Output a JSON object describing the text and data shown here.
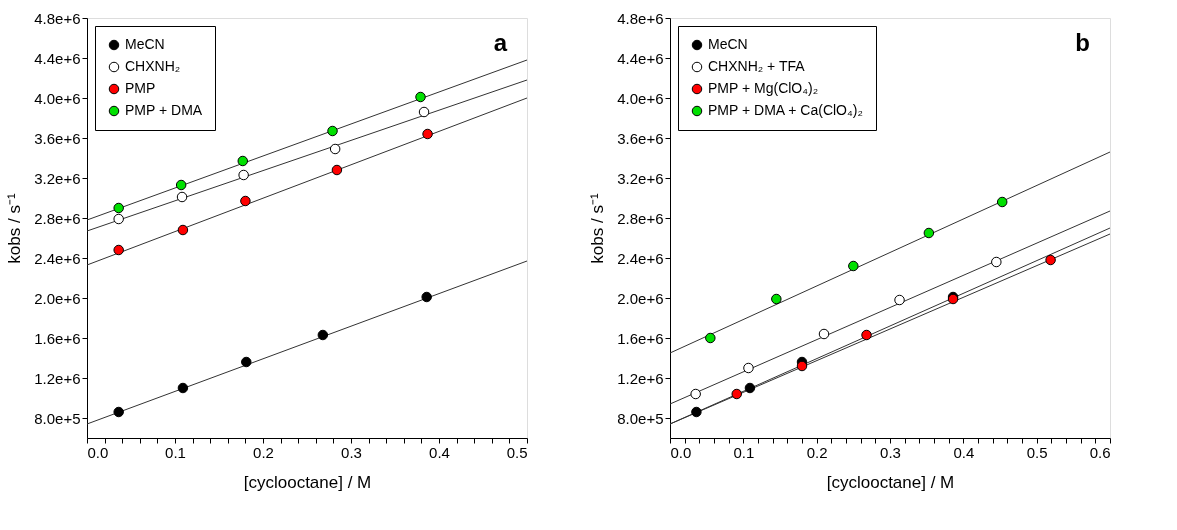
{
  "chart_data": [
    {
      "type": "scatter",
      "xlabel": "[cyclooctane] / M",
      "ylabel": "kobs / s⁻¹",
      "annotations": [
        "a"
      ],
      "legend": "top left",
      "grid": false,
      "marker": "circle",
      "xlim": [
        0,
        0.5
      ],
      "xticks": [
        {
          "value": 0,
          "label": "0.0"
        },
        {
          "value": 0.02,
          "label": null
        },
        {
          "value": 0.04,
          "label": null
        },
        {
          "value": 0.06,
          "label": null
        },
        {
          "value": 0.08,
          "label": null
        },
        {
          "value": 0.1,
          "label": "0.1"
        },
        {
          "value": 0.12,
          "label": null
        },
        {
          "value": 0.14,
          "label": null
        },
        {
          "value": 0.16,
          "label": null
        },
        {
          "value": 0.18,
          "label": null
        },
        {
          "value": 0.2,
          "label": "0.2"
        },
        {
          "value": 0.22,
          "label": null
        },
        {
          "value": 0.24,
          "label": null
        },
        {
          "value": 0.26,
          "label": null
        },
        {
          "value": 0.28,
          "label": null
        },
        {
          "value": 0.3,
          "label": "0.3"
        },
        {
          "value": 0.32,
          "label": null
        },
        {
          "value": 0.34,
          "label": null
        },
        {
          "value": 0.36,
          "label": null
        },
        {
          "value": 0.38,
          "label": null
        },
        {
          "value": 0.4,
          "label": "0.4"
        },
        {
          "value": 0.42,
          "label": null
        },
        {
          "value": 0.44,
          "label": null
        },
        {
          "value": 0.46,
          "label": null
        },
        {
          "value": 0.48,
          "label": null
        },
        {
          "value": 0.5,
          "label": "0.5"
        }
      ],
      "ylim": [
        600000,
        4800000
      ],
      "yticks": [
        {
          "value": 800000,
          "label": "8.0e+5"
        },
        {
          "value": 1200000,
          "label": "1.2e+6"
        },
        {
          "value": 1600000,
          "label": "1.6e+6"
        },
        {
          "value": 2000000,
          "label": "2.0e+6"
        },
        {
          "value": 2400000,
          "label": "2.4e+6"
        },
        {
          "value": 2800000,
          "label": "2.8e+6"
        },
        {
          "value": 3200000,
          "label": "3.2e+6"
        },
        {
          "value": 3600000,
          "label": "3.6e+6"
        },
        {
          "value": 4000000,
          "label": "4.0e+6"
        },
        {
          "value": 4400000,
          "label": "4.4e+6"
        },
        {
          "value": 4800000,
          "label": "4.8e+6"
        }
      ],
      "series": [
        {
          "type": "line",
          "marker": "none",
          "color": "#333333",
          "x": [
            0,
            0.5
          ],
          "values": [
            740000,
            2370000
          ]
        },
        {
          "type": "line",
          "marker": "none",
          "color": "#333333",
          "x": [
            0,
            0.5
          ],
          "values": [
            2670000,
            4180000
          ]
        },
        {
          "type": "line",
          "marker": "none",
          "color": "#333333",
          "x": [
            0,
            0.5
          ],
          "values": [
            2330000,
            4000000
          ]
        },
        {
          "type": "line",
          "marker": "none",
          "color": "#333333",
          "x": [
            0,
            0.5
          ],
          "values": [
            2780000,
            4380000
          ]
        },
        {
          "name": "MeCN",
          "color": "#000000",
          "x": [
            0.036,
            0.109,
            0.181,
            0.268,
            0.386
          ],
          "values": [
            860000,
            1100000,
            1360000,
            1630000,
            2010000
          ]
        },
        {
          "name": "CHXNH₂",
          "color": "#ffffff",
          "x": [
            0.036,
            0.108,
            0.178,
            0.282,
            0.383
          ],
          "values": [
            2790000,
            3010000,
            3230000,
            3490000,
            3860000
          ]
        },
        {
          "name": "PMP",
          "color": "#ff0000",
          "x": [
            0.036,
            0.109,
            0.18,
            0.284,
            0.387
          ],
          "values": [
            2480000,
            2680000,
            2970000,
            3280000,
            3640000
          ]
        },
        {
          "name": "PMP + DMA",
          "color": "#00e000",
          "x": [
            0.036,
            0.107,
            0.177,
            0.279,
            0.379
          ],
          "values": [
            2900000,
            3130000,
            3370000,
            3670000,
            4010000
          ]
        }
      ]
    },
    {
      "type": "scatter",
      "xlabel": "[cyclooctane] / M",
      "ylabel": "kobs / s⁻¹",
      "annotations": [
        "b"
      ],
      "legend": "top left",
      "grid": false,
      "marker": "circle",
      "xlim": [
        0,
        0.6
      ],
      "xticks": [
        {
          "value": 0,
          "label": "0.0"
        },
        {
          "value": 0.02,
          "label": null
        },
        {
          "value": 0.04,
          "label": null
        },
        {
          "value": 0.06,
          "label": null
        },
        {
          "value": 0.08,
          "label": null
        },
        {
          "value": 0.1,
          "label": "0.1"
        },
        {
          "value": 0.12,
          "label": null
        },
        {
          "value": 0.14,
          "label": null
        },
        {
          "value": 0.16,
          "label": null
        },
        {
          "value": 0.18,
          "label": null
        },
        {
          "value": 0.2,
          "label": "0.2"
        },
        {
          "value": 0.22,
          "label": null
        },
        {
          "value": 0.24,
          "label": null
        },
        {
          "value": 0.26,
          "label": null
        },
        {
          "value": 0.28,
          "label": null
        },
        {
          "value": 0.3,
          "label": "0.3"
        },
        {
          "value": 0.32,
          "label": null
        },
        {
          "value": 0.34,
          "label": null
        },
        {
          "value": 0.36,
          "label": null
        },
        {
          "value": 0.38,
          "label": null
        },
        {
          "value": 0.4,
          "label": "0.4"
        },
        {
          "value": 0.42,
          "label": null
        },
        {
          "value": 0.44,
          "label": null
        },
        {
          "value": 0.46,
          "label": null
        },
        {
          "value": 0.48,
          "label": null
        },
        {
          "value": 0.5,
          "label": "0.5"
        },
        {
          "value": 0.52,
          "label": null
        },
        {
          "value": 0.54,
          "label": null
        },
        {
          "value": 0.56,
          "label": null
        },
        {
          "value": 0.58,
          "label": null
        },
        {
          "value": 0.6,
          "label": "0.6"
        }
      ],
      "ylim": [
        600000,
        4800000
      ],
      "yticks": [
        {
          "value": 800000,
          "label": "8.0e+5"
        },
        {
          "value": 1200000,
          "label": "1.2e+6"
        },
        {
          "value": 1600000,
          "label": "1.6e+6"
        },
        {
          "value": 2000000,
          "label": "2.0e+6"
        },
        {
          "value": 2400000,
          "label": "2.4e+6"
        },
        {
          "value": 2800000,
          "label": "2.8e+6"
        },
        {
          "value": 3200000,
          "label": "3.2e+6"
        },
        {
          "value": 3600000,
          "label": "3.6e+6"
        },
        {
          "value": 4000000,
          "label": "4.0e+6"
        },
        {
          "value": 4400000,
          "label": "4.4e+6"
        },
        {
          "value": 4800000,
          "label": "4.8e+6"
        }
      ],
      "series": [
        {
          "type": "line",
          "marker": "none",
          "color": "#333333",
          "x": [
            0,
            0.6
          ],
          "values": [
            740000,
            2700000
          ]
        },
        {
          "type": "line",
          "marker": "none",
          "color": "#333333",
          "x": [
            0,
            0.6
          ],
          "values": [
            940000,
            2870000
          ]
        },
        {
          "type": "line",
          "marker": "none",
          "color": "#333333",
          "x": [
            0,
            0.6
          ],
          "values": [
            740000,
            2640000
          ]
        },
        {
          "type": "line",
          "marker": "none",
          "color": "#333333",
          "x": [
            0,
            0.6
          ],
          "values": [
            1450000,
            3460000
          ]
        },
        {
          "name": "MeCN",
          "color": "#000000",
          "x": [
            0.036,
            0.109,
            0.18,
            0.386
          ],
          "values": [
            860000,
            1100000,
            1360000,
            2010000
          ]
        },
        {
          "name": "CHXNH₂ + TFA",
          "color": "#ffffff",
          "x": [
            0.035,
            0.107,
            0.21,
            0.313,
            0.445
          ],
          "values": [
            1040000,
            1300000,
            1640000,
            1980000,
            2360000
          ]
        },
        {
          "name": "PMP + Mg(ClO₄)₂",
          "color": "#ff0000",
          "x": [
            0.091,
            0.18,
            0.268,
            0.386,
            0.519
          ],
          "values": [
            1040000,
            1320000,
            1630000,
            1990000,
            2380000
          ]
        },
        {
          "name": "PMP + DMA + Ca(ClO₄)₂",
          "color": "#00e000",
          "x": [
            0.055,
            0.145,
            0.25,
            0.353,
            0.453
          ],
          "values": [
            1600000,
            1990000,
            2320000,
            2650000,
            2960000
          ]
        }
      ]
    }
  ]
}
